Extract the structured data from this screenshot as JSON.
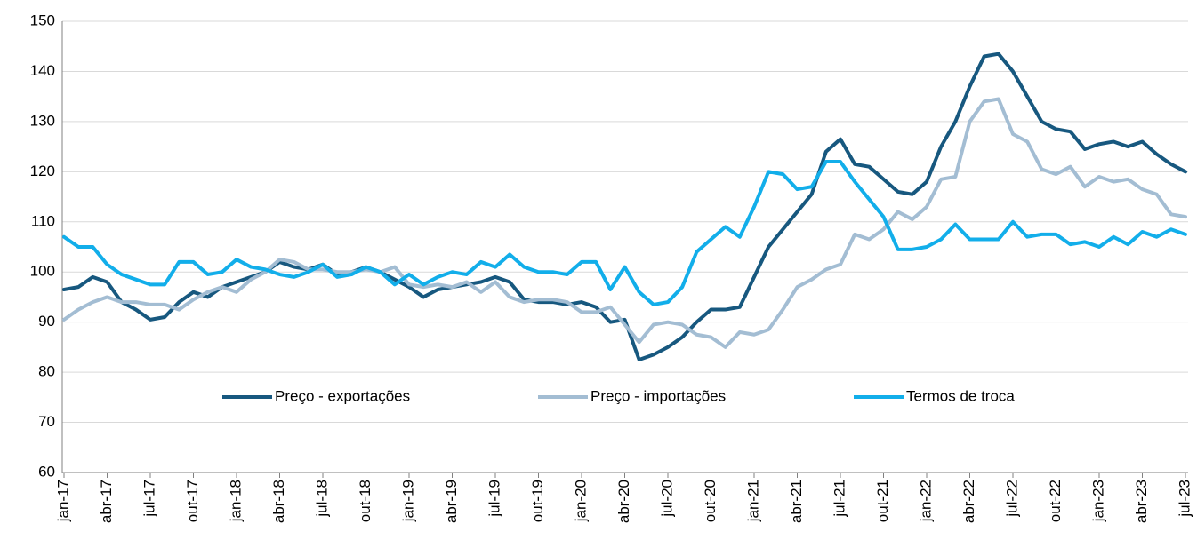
{
  "chart_data": {
    "type": "line",
    "categories": [
      "jan-17",
      null,
      null,
      "abr-17",
      null,
      null,
      "jul-17",
      null,
      null,
      "out-17",
      null,
      null,
      "jan-18",
      null,
      null,
      "abr-18",
      null,
      null,
      "jul-18",
      null,
      null,
      "out-18",
      null,
      null,
      "jan-19",
      null,
      null,
      "abr-19",
      null,
      null,
      "jul-19",
      null,
      null,
      "out-19",
      null,
      null,
      "jan-20",
      null,
      null,
      "abr-20",
      null,
      null,
      "jul-20",
      null,
      null,
      "out-20",
      null,
      null,
      "jan-21",
      null,
      null,
      "abr-21",
      null,
      null,
      "jul-21",
      null,
      null,
      "out-21",
      null,
      null,
      "jan-22",
      null,
      null,
      "abr-22",
      null,
      null,
      "jul-22",
      null,
      null,
      "out-22",
      null,
      null,
      "jan-23",
      null,
      null,
      "abr-23",
      null,
      null,
      "jul-23"
    ],
    "series": [
      {
        "name": "Preço - exportações",
        "color": "#17587f",
        "values": [
          96.5,
          97,
          99,
          98,
          94,
          92.5,
          90.5,
          91,
          94,
          96,
          95,
          97,
          98,
          99,
          100,
          102,
          101,
          100.5,
          101.5,
          99.5,
          100,
          101,
          100,
          98.5,
          97,
          95,
          96.5,
          97,
          97.5,
          98,
          99,
          98,
          94.5,
          94,
          94,
          93.5,
          94,
          93,
          90,
          90.5,
          82.5,
          83.5,
          85,
          87,
          90,
          92.5,
          92.5,
          93,
          99,
          105,
          108.5,
          112,
          115.5,
          124,
          126.5,
          121.5,
          121,
          118.5,
          116,
          115.5,
          118,
          125,
          130,
          137,
          143,
          143.5,
          140,
          135,
          130,
          128.5,
          128,
          124.5,
          125.5,
          126,
          125,
          126,
          123.5,
          121.5,
          120
        ]
      },
      {
        "name": "Preço - importações",
        "color": "#a3bdd3",
        "values": [
          90.5,
          92.5,
          94,
          95,
          94,
          94,
          93.5,
          93.5,
          92.5,
          94.5,
          96,
          97,
          96,
          98.5,
          100,
          102.5,
          102,
          100.5,
          100.5,
          100,
          100,
          100.5,
          100,
          101,
          97.5,
          97,
          97.5,
          97,
          98,
          96,
          98,
          95,
          94,
          94.5,
          94.5,
          94,
          92,
          92,
          93,
          89.5,
          86,
          89.5,
          90,
          89.5,
          87.5,
          87,
          85,
          88,
          87.5,
          88.5,
          92.5,
          97,
          98.5,
          100.5,
          101.5,
          107.5,
          106.5,
          108.5,
          112,
          110.5,
          113,
          118.5,
          119,
          130,
          134,
          134.5,
          127.5,
          126,
          120.5,
          119.5,
          121,
          117,
          119,
          118,
          118.5,
          116.5,
          115.5,
          111.5,
          111
        ]
      },
      {
        "name": "Termos de troca",
        "color": "#12aeea",
        "values": [
          107,
          105,
          105,
          101.5,
          99.5,
          98.5,
          97.5,
          97.5,
          102,
          102,
          99.5,
          100,
          102.5,
          101,
          100.5,
          99.5,
          99,
          100,
          101.5,
          99,
          99.5,
          101,
          100,
          97.5,
          99.5,
          97.5,
          99,
          100,
          99.5,
          102,
          101,
          103.5,
          101,
          100,
          100,
          99.5,
          102,
          102,
          96.5,
          101,
          96,
          93.5,
          94,
          97,
          104,
          106.5,
          109,
          107,
          113,
          120,
          119.5,
          116.5,
          117,
          122,
          122,
          118,
          114.5,
          111,
          104.5,
          104.5,
          105,
          106.5,
          109.5,
          106.5,
          106.5,
          106.5,
          110,
          107,
          107.5,
          107.5,
          105.5,
          106,
          105,
          107,
          105.5,
          108,
          107,
          108.5,
          107.5
        ]
      }
    ],
    "ylim": [
      60,
      150
    ],
    "yticks": [
      60,
      70,
      80,
      90,
      100,
      110,
      120,
      130,
      140,
      150
    ],
    "grid": true,
    "legend": "lower center"
  }
}
